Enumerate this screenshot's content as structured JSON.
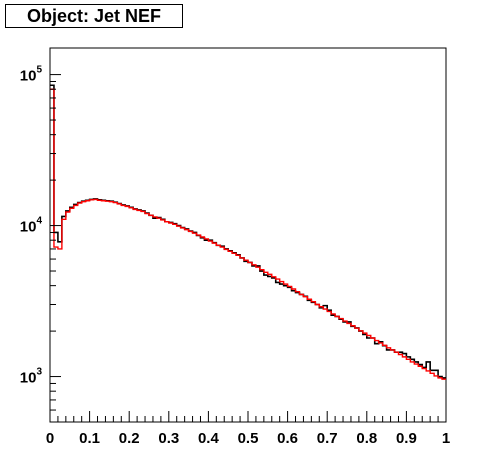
{
  "title": "Object: Jet NEF",
  "chart_data": {
    "type": "line",
    "title": "Object: Jet NEF",
    "xlabel": "",
    "ylabel": "",
    "xlim": [
      0,
      1
    ],
    "ylim": [
      500,
      150000
    ],
    "yscale": "log",
    "grid": false,
    "x_ticks": [
      "0",
      "0.1",
      "0.2",
      "0.3",
      "0.4",
      "0.5",
      "0.6",
      "0.7",
      "0.8",
      "0.9",
      "1"
    ],
    "y_ticks": [
      {
        "base": "10",
        "exp": "3",
        "value": 1000
      },
      {
        "base": "10",
        "exp": "4",
        "value": 10000
      },
      {
        "base": "10",
        "exp": "5",
        "value": 100000
      }
    ],
    "bin_width": 0.01,
    "series": [
      {
        "color": "#000000",
        "style": "histogram",
        "values": [
          85000,
          9000,
          7800,
          11500,
          12500,
          13200,
          13800,
          14200,
          14500,
          14700,
          14900,
          15000,
          14800,
          14700,
          14600,
          14500,
          14300,
          14000,
          13700,
          13500,
          13200,
          12900,
          12700,
          12500,
          12100,
          11700,
          11200,
          11300,
          11000,
          10600,
          10500,
          10300,
          10000,
          9700,
          9500,
          9200,
          9000,
          8600,
          8300,
          8000,
          8000,
          7700,
          7400,
          7300,
          7000,
          6800,
          6600,
          6400,
          6100,
          5800,
          5700,
          5400,
          5400,
          5000,
          4700,
          4600,
          4500,
          4200,
          4100,
          4000,
          3900,
          3700,
          3600,
          3500,
          3400,
          3200,
          3100,
          3000,
          2850,
          2950,
          2750,
          2550,
          2500,
          2400,
          2300,
          2300,
          2150,
          2100,
          2000,
          1900,
          1800,
          1800,
          1650,
          1700,
          1600,
          1500,
          1500,
          1450,
          1450,
          1420,
          1350,
          1300,
          1250,
          1200,
          1150,
          1250,
          1100,
          1100,
          1000,
          980
        ]
      },
      {
        "color": "#ff0000",
        "style": "histogram",
        "values": [
          80000,
          7200,
          7000,
          11000,
          12300,
          13000,
          13600,
          14100,
          14400,
          14600,
          14800,
          14900,
          14700,
          14600,
          14500,
          14400,
          14200,
          13900,
          13600,
          13400,
          13100,
          12800,
          12600,
          12400,
          12000,
          11700,
          11400,
          11200,
          10900,
          10600,
          10400,
          10200,
          9900,
          9650,
          9400,
          9150,
          8900,
          8650,
          8400,
          8150,
          7900,
          7650,
          7400,
          7200,
          6950,
          6750,
          6550,
          6350,
          6100,
          5900,
          5700,
          5500,
          5300,
          5100,
          4900,
          4750,
          4580,
          4420,
          4260,
          4100,
          3950,
          3800,
          3650,
          3500,
          3380,
          3250,
          3130,
          3000,
          2900,
          2800,
          2700,
          2600,
          2500,
          2420,
          2330,
          2250,
          2170,
          2090,
          2010,
          1940,
          1870,
          1800,
          1730,
          1670,
          1610,
          1550,
          1500,
          1450,
          1400,
          1350,
          1300,
          1250,
          1210,
          1170,
          1130,
          1090,
          1050,
          1010,
          980,
          960
        ]
      }
    ]
  }
}
